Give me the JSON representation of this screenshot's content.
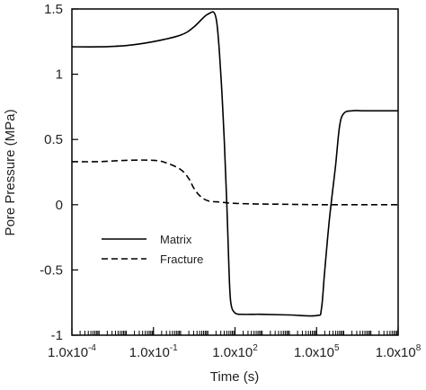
{
  "chart_data": {
    "type": "line",
    "xlabel": "Time (s)",
    "ylabel": "Pore Pressure (MPa)",
    "xscale": "log",
    "xlim": [
      0.0001,
      100000000
    ],
    "ylim": [
      -1,
      1.5
    ],
    "xticks": [
      {
        "value": 0.0001,
        "mantissa": "1.0x10",
        "exp": "-4"
      },
      {
        "value": 0.1,
        "mantissa": "1.0x10",
        "exp": "-1"
      },
      {
        "value": 100,
        "mantissa": "1.0x10",
        "exp": "2"
      },
      {
        "value": 100000,
        "mantissa": "1.0x10",
        "exp": "5"
      },
      {
        "value": 100000000,
        "mantissa": "1.0x10",
        "exp": "8"
      }
    ],
    "yticks": [
      {
        "value": 1.5,
        "label": "1.5"
      },
      {
        "value": 1,
        "label": "1"
      },
      {
        "value": 0.5,
        "label": "0.5"
      },
      {
        "value": 0,
        "label": "0"
      },
      {
        "value": -0.5,
        "label": "-0.5"
      },
      {
        "value": -1,
        "label": "-1"
      }
    ],
    "grid": false,
    "legend_position": "lower-left",
    "series": [
      {
        "name": "Matrix",
        "style": "solid",
        "color": "#000000",
        "x": [
          0.0001,
          0.001,
          0.01,
          0.1,
          1,
          3,
          10,
          20,
          30,
          40,
          50,
          60,
          70,
          100,
          200,
          500,
          1000,
          10000,
          100000,
          150000,
          200000,
          300000,
          500000,
          700000,
          1000000,
          2000000,
          5000000,
          10000000,
          100000000
        ],
        "y": [
          1.21,
          1.21,
          1.22,
          1.25,
          1.3,
          1.36,
          1.46,
          1.43,
          1.0,
          0.5,
          0.0,
          -0.5,
          -0.75,
          -0.83,
          -0.84,
          -0.84,
          -0.84,
          -0.845,
          -0.85,
          -0.8,
          -0.5,
          -0.1,
          0.3,
          0.6,
          0.7,
          0.72,
          0.72,
          0.72,
          0.72
        ]
      },
      {
        "name": "Fracture",
        "style": "dashed",
        "color": "#000000",
        "x": [
          0.0001,
          0.001,
          0.01,
          0.1,
          0.3,
          1,
          2,
          3,
          5,
          10,
          30,
          100,
          1000,
          10000,
          100000,
          1000000,
          10000000,
          100000000
        ],
        "y": [
          0.33,
          0.33,
          0.34,
          0.34,
          0.32,
          0.27,
          0.2,
          0.13,
          0.07,
          0.03,
          0.02,
          0.01,
          0.005,
          0.003,
          0.0,
          0.0,
          0.0,
          0.0
        ]
      }
    ]
  }
}
